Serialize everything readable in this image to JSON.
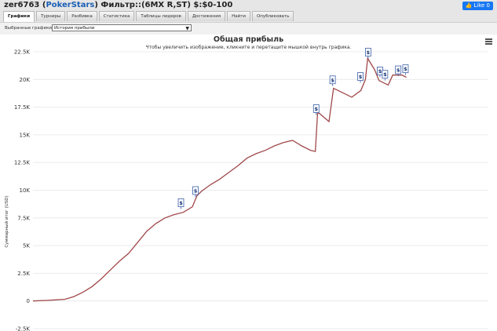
{
  "header": {
    "player": "zer6763",
    "site": "PokerStars",
    "filter": "Фильтр::(6MX R,ST) $:$0-100",
    "like_label": "Like 0"
  },
  "tabs": [
    {
      "label": "Графики",
      "active": true
    },
    {
      "label": "Турниры",
      "active": false
    },
    {
      "label": "Разбивка",
      "active": false
    },
    {
      "label": "Статистика",
      "active": false
    },
    {
      "label": "Таблицы лидеров",
      "active": false
    },
    {
      "label": "Достижения",
      "active": false
    },
    {
      "label": "Найти",
      "active": false
    },
    {
      "label": "Опубликовать",
      "active": false
    }
  ],
  "toolbar": {
    "label": "Выбранные графики:",
    "selected": "История прибыли"
  },
  "colors": {
    "line": "#a0484a",
    "flag_border": "#3a5fa8",
    "grid": "#e6e6e6"
  },
  "chart_data": {
    "type": "line",
    "title": "Общая прибыль",
    "subtitle": "Чтобы увеличить изображение, кликните и перетащите мышкой внутрь графика.",
    "ylabel": "Суммарный итог (USD)",
    "ylim": [
      -2500,
      22500
    ],
    "yticks": [
      -2500,
      0,
      2500,
      5000,
      7500,
      10000,
      12500,
      15000,
      17500,
      20000,
      22500
    ],
    "ytick_labels": [
      "-2.5K",
      "0",
      "2.5K",
      "5K",
      "7.5K",
      "10K",
      "12.5K",
      "15K",
      "17.5K",
      "20K",
      "22.5K"
    ],
    "xlim": [
      0,
      1
    ],
    "grid": true,
    "series": [
      {
        "points": [
          [
            0,
            0
          ],
          [
            0.03,
            50
          ],
          [
            0.05,
            100
          ],
          [
            0.07,
            150
          ],
          [
            0.09,
            400
          ],
          [
            0.11,
            800
          ],
          [
            0.13,
            1300
          ],
          [
            0.15,
            2000
          ],
          [
            0.17,
            2800
          ],
          [
            0.19,
            3600
          ],
          [
            0.21,
            4300
          ],
          [
            0.23,
            5300
          ],
          [
            0.25,
            6300
          ],
          [
            0.27,
            7000
          ],
          [
            0.29,
            7500
          ],
          [
            0.31,
            7800
          ],
          [
            0.33,
            8000
          ],
          [
            0.35,
            8500
          ],
          [
            0.36,
            9500
          ],
          [
            0.37,
            9900
          ],
          [
            0.39,
            10500
          ],
          [
            0.41,
            11000
          ],
          [
            0.43,
            11600
          ],
          [
            0.45,
            12200
          ],
          [
            0.47,
            12900
          ],
          [
            0.49,
            13300
          ],
          [
            0.51,
            13600
          ],
          [
            0.53,
            14000
          ],
          [
            0.55,
            14300
          ],
          [
            0.57,
            14500
          ],
          [
            0.59,
            14000
          ],
          [
            0.61,
            13600
          ],
          [
            0.62,
            13500
          ],
          [
            0.625,
            17000
          ],
          [
            0.63,
            16900
          ],
          [
            0.65,
            16200
          ],
          [
            0.66,
            19200
          ],
          [
            0.68,
            18800
          ],
          [
            0.7,
            18400
          ],
          [
            0.72,
            19000
          ],
          [
            0.73,
            20000
          ],
          [
            0.735,
            21900
          ],
          [
            0.75,
            20900
          ],
          [
            0.76,
            19900
          ],
          [
            0.78,
            19500
          ],
          [
            0.79,
            20400
          ],
          [
            0.81,
            20400
          ],
          [
            0.82,
            20200
          ]
        ]
      }
    ],
    "flags": [
      {
        "x": 0.325,
        "y": 8300,
        "label": "$"
      },
      {
        "x": 0.357,
        "y": 9400,
        "label": "$"
      },
      {
        "x": 0.622,
        "y": 16800,
        "label": "$"
      },
      {
        "x": 0.658,
        "y": 19400,
        "label": "$"
      },
      {
        "x": 0.719,
        "y": 19700,
        "label": "$"
      },
      {
        "x": 0.736,
        "y": 21900,
        "label": "$"
      },
      {
        "x": 0.762,
        "y": 20200,
        "label": "$"
      },
      {
        "x": 0.773,
        "y": 19900,
        "label": "$"
      },
      {
        "x": 0.802,
        "y": 20300,
        "label": "$"
      },
      {
        "x": 0.818,
        "y": 20400,
        "label": "$"
      }
    ]
  }
}
